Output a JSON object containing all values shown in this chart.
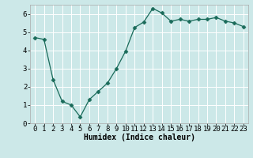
{
  "x": [
    0,
    1,
    2,
    3,
    4,
    5,
    6,
    7,
    8,
    9,
    10,
    11,
    12,
    13,
    14,
    15,
    16,
    17,
    18,
    19,
    20,
    21,
    22,
    23
  ],
  "y": [
    4.7,
    4.6,
    2.4,
    1.2,
    1.0,
    0.35,
    1.3,
    1.75,
    2.2,
    3.0,
    3.95,
    5.25,
    5.55,
    6.3,
    6.05,
    5.6,
    5.7,
    5.6,
    5.7,
    5.7,
    5.8,
    5.6,
    5.5,
    5.3
  ],
  "xlabel": "Humidex (Indice chaleur)",
  "ylim": [
    0,
    6.5
  ],
  "xlim": [
    -0.5,
    23.5
  ],
  "yticks": [
    0,
    1,
    2,
    3,
    4,
    5,
    6
  ],
  "xticks": [
    0,
    1,
    2,
    3,
    4,
    5,
    6,
    7,
    8,
    9,
    10,
    11,
    12,
    13,
    14,
    15,
    16,
    17,
    18,
    19,
    20,
    21,
    22,
    23
  ],
  "line_color": "#1a6b5a",
  "marker": "D",
  "marker_size": 2.5,
  "bg_color": "#cce8e8",
  "grid_color": "#ffffff",
  "xlabel_fontsize": 7,
  "tick_fontsize": 6.5,
  "title": ""
}
